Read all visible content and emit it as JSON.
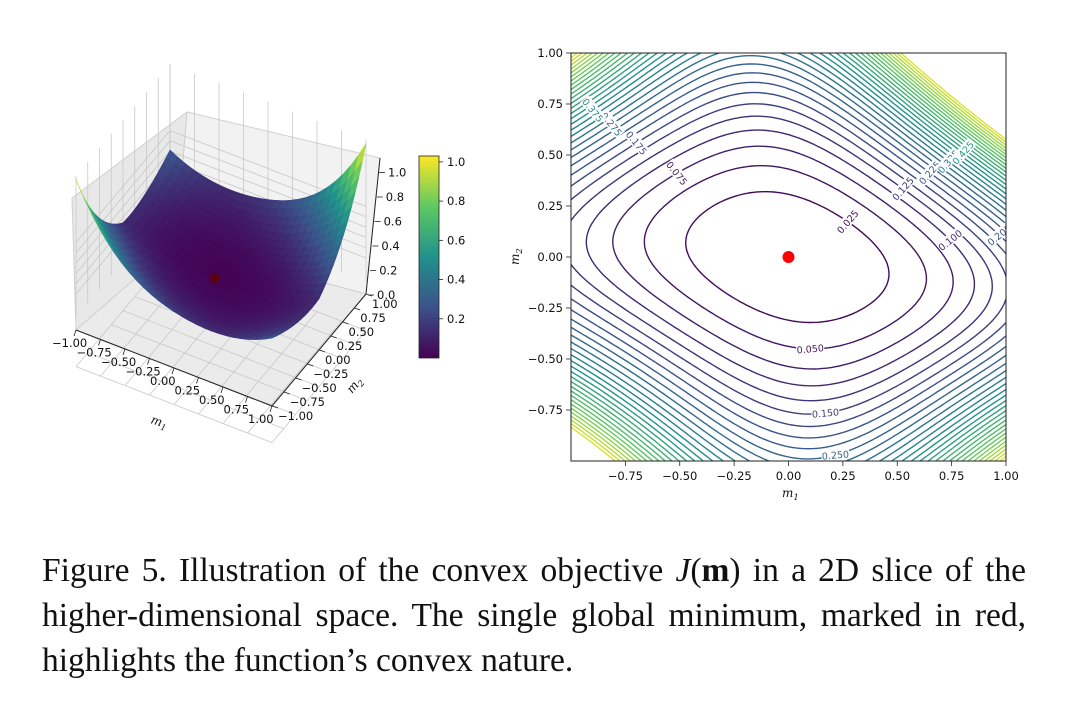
{
  "caption": {
    "part1": "Figure 5. Illustration of the convex objective ",
    "J": "J",
    "open": "(",
    "m": "m",
    "close": ")",
    "part2": " in a 2D slice of the higher-dimensional space. The single global minimum, marked in red, highlights the function’s convex nature."
  },
  "colors": {
    "minimum_marker": "#ff0000",
    "colormap": [
      "#440154",
      "#3b528b",
      "#21918c",
      "#5ec962",
      "#fde725"
    ]
  },
  "chart_data": [
    {
      "type": "surface",
      "xlabel": "m1",
      "ylabel": "m2",
      "xlim": [
        -1.0,
        1.0
      ],
      "ylim": [
        -1.0,
        1.0
      ],
      "zlim": [
        0.0,
        1.0
      ],
      "x_ticks": [
        "−1.00",
        "−0.75",
        "−0.50",
        "−0.25",
        "0.00",
        "0.25",
        "0.50",
        "0.75",
        "1.00"
      ],
      "y_ticks": [
        "−1.00",
        "−0.75",
        "−0.50",
        "−0.25",
        "0.00",
        "0.25",
        "0.50",
        "0.75",
        "1.00"
      ],
      "z_ticks": [
        "0.0",
        "0.2",
        "0.4",
        "0.6",
        "0.8",
        "1.0"
      ],
      "colorbar": {
        "ticks": [
          "0.2",
          "0.4",
          "0.6",
          "0.8",
          "1.0"
        ],
        "range": [
          0.0,
          1.03
        ]
      },
      "minimum": {
        "x": 0.0,
        "y": 0.0,
        "z": 0.0
      },
      "grid": true
    },
    {
      "type": "contour",
      "xlabel": "m1",
      "ylabel": "m2",
      "xlim": [
        -1.0,
        1.0
      ],
      "ylim": [
        -1.0,
        1.0
      ],
      "x_ticks": [
        "−0.75",
        "−0.50",
        "−0.25",
        "0.00",
        "0.25",
        "0.50",
        "0.75",
        "1.00"
      ],
      "y_ticks": [
        "1.00",
        "0.75",
        "0.50",
        "0.25",
        "0.00",
        "−0.25",
        "−0.50",
        "−0.75"
      ],
      "levels": [
        0.025,
        0.05,
        0.075,
        0.1,
        0.125,
        0.15,
        0.175,
        0.2,
        0.225,
        0.25,
        0.275,
        0.3,
        0.325,
        0.35,
        0.375,
        0.4,
        0.425,
        0.45,
        0.475,
        0.5,
        0.525,
        0.55,
        0.575,
        0.6,
        0.625,
        0.65,
        0.675,
        0.7,
        0.725,
        0.75
      ],
      "level_labels": [
        "0.025",
        "0.050",
        "0.075",
        "0.100",
        "0.125",
        "0.150",
        "0.175",
        "0.200",
        "0.225",
        "0.250",
        "0.275",
        "0.300",
        "0.325",
        "0.350",
        "0.375",
        "0.400",
        "0.425",
        "0.475"
      ],
      "minimum": {
        "x": 0.0,
        "y": 0.0
      }
    }
  ]
}
